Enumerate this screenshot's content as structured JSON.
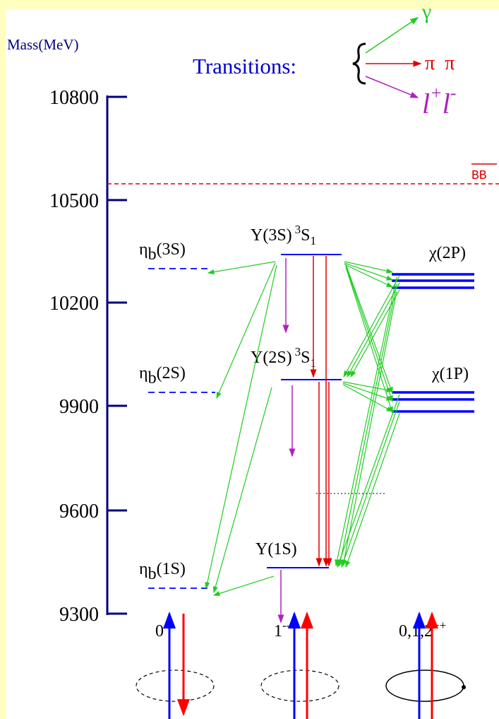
{
  "axis": {
    "title": "Mass(MeV)",
    "ticks": [
      "10800",
      "10500",
      "10200",
      "9900",
      "9600",
      "9300"
    ]
  },
  "legend": {
    "title": "Transitions:",
    "gamma": "γ",
    "pion": "π  π",
    "lepton": [
      "l",
      "+",
      "l",
      "-"
    ]
  },
  "threshold": {
    "label": "BB"
  },
  "eta": [
    {
      "base": "η",
      "sub": "b",
      "state": "(3S)"
    },
    {
      "base": "η",
      "sub": "b",
      "state": "(2S)"
    },
    {
      "base": "η",
      "sub": "b",
      "state": "(1S)"
    }
  ],
  "upsilon": [
    {
      "name": "Υ(3S)",
      "sup": "3",
      "term": "S",
      "sub": "1"
    },
    {
      "name": "Υ(2S)",
      "sup": "3",
      "term": "S",
      "sub": "1"
    },
    {
      "name": "Υ(1S)"
    }
  ],
  "chi": [
    "χ(2P)",
    "χ(1P)"
  ],
  "jpc": [
    {
      "j": "0",
      "pc": "-+"
    },
    {
      "j": "1",
      "pc": "--"
    },
    {
      "j": "0,1,2",
      "pc": "++"
    }
  ]
}
